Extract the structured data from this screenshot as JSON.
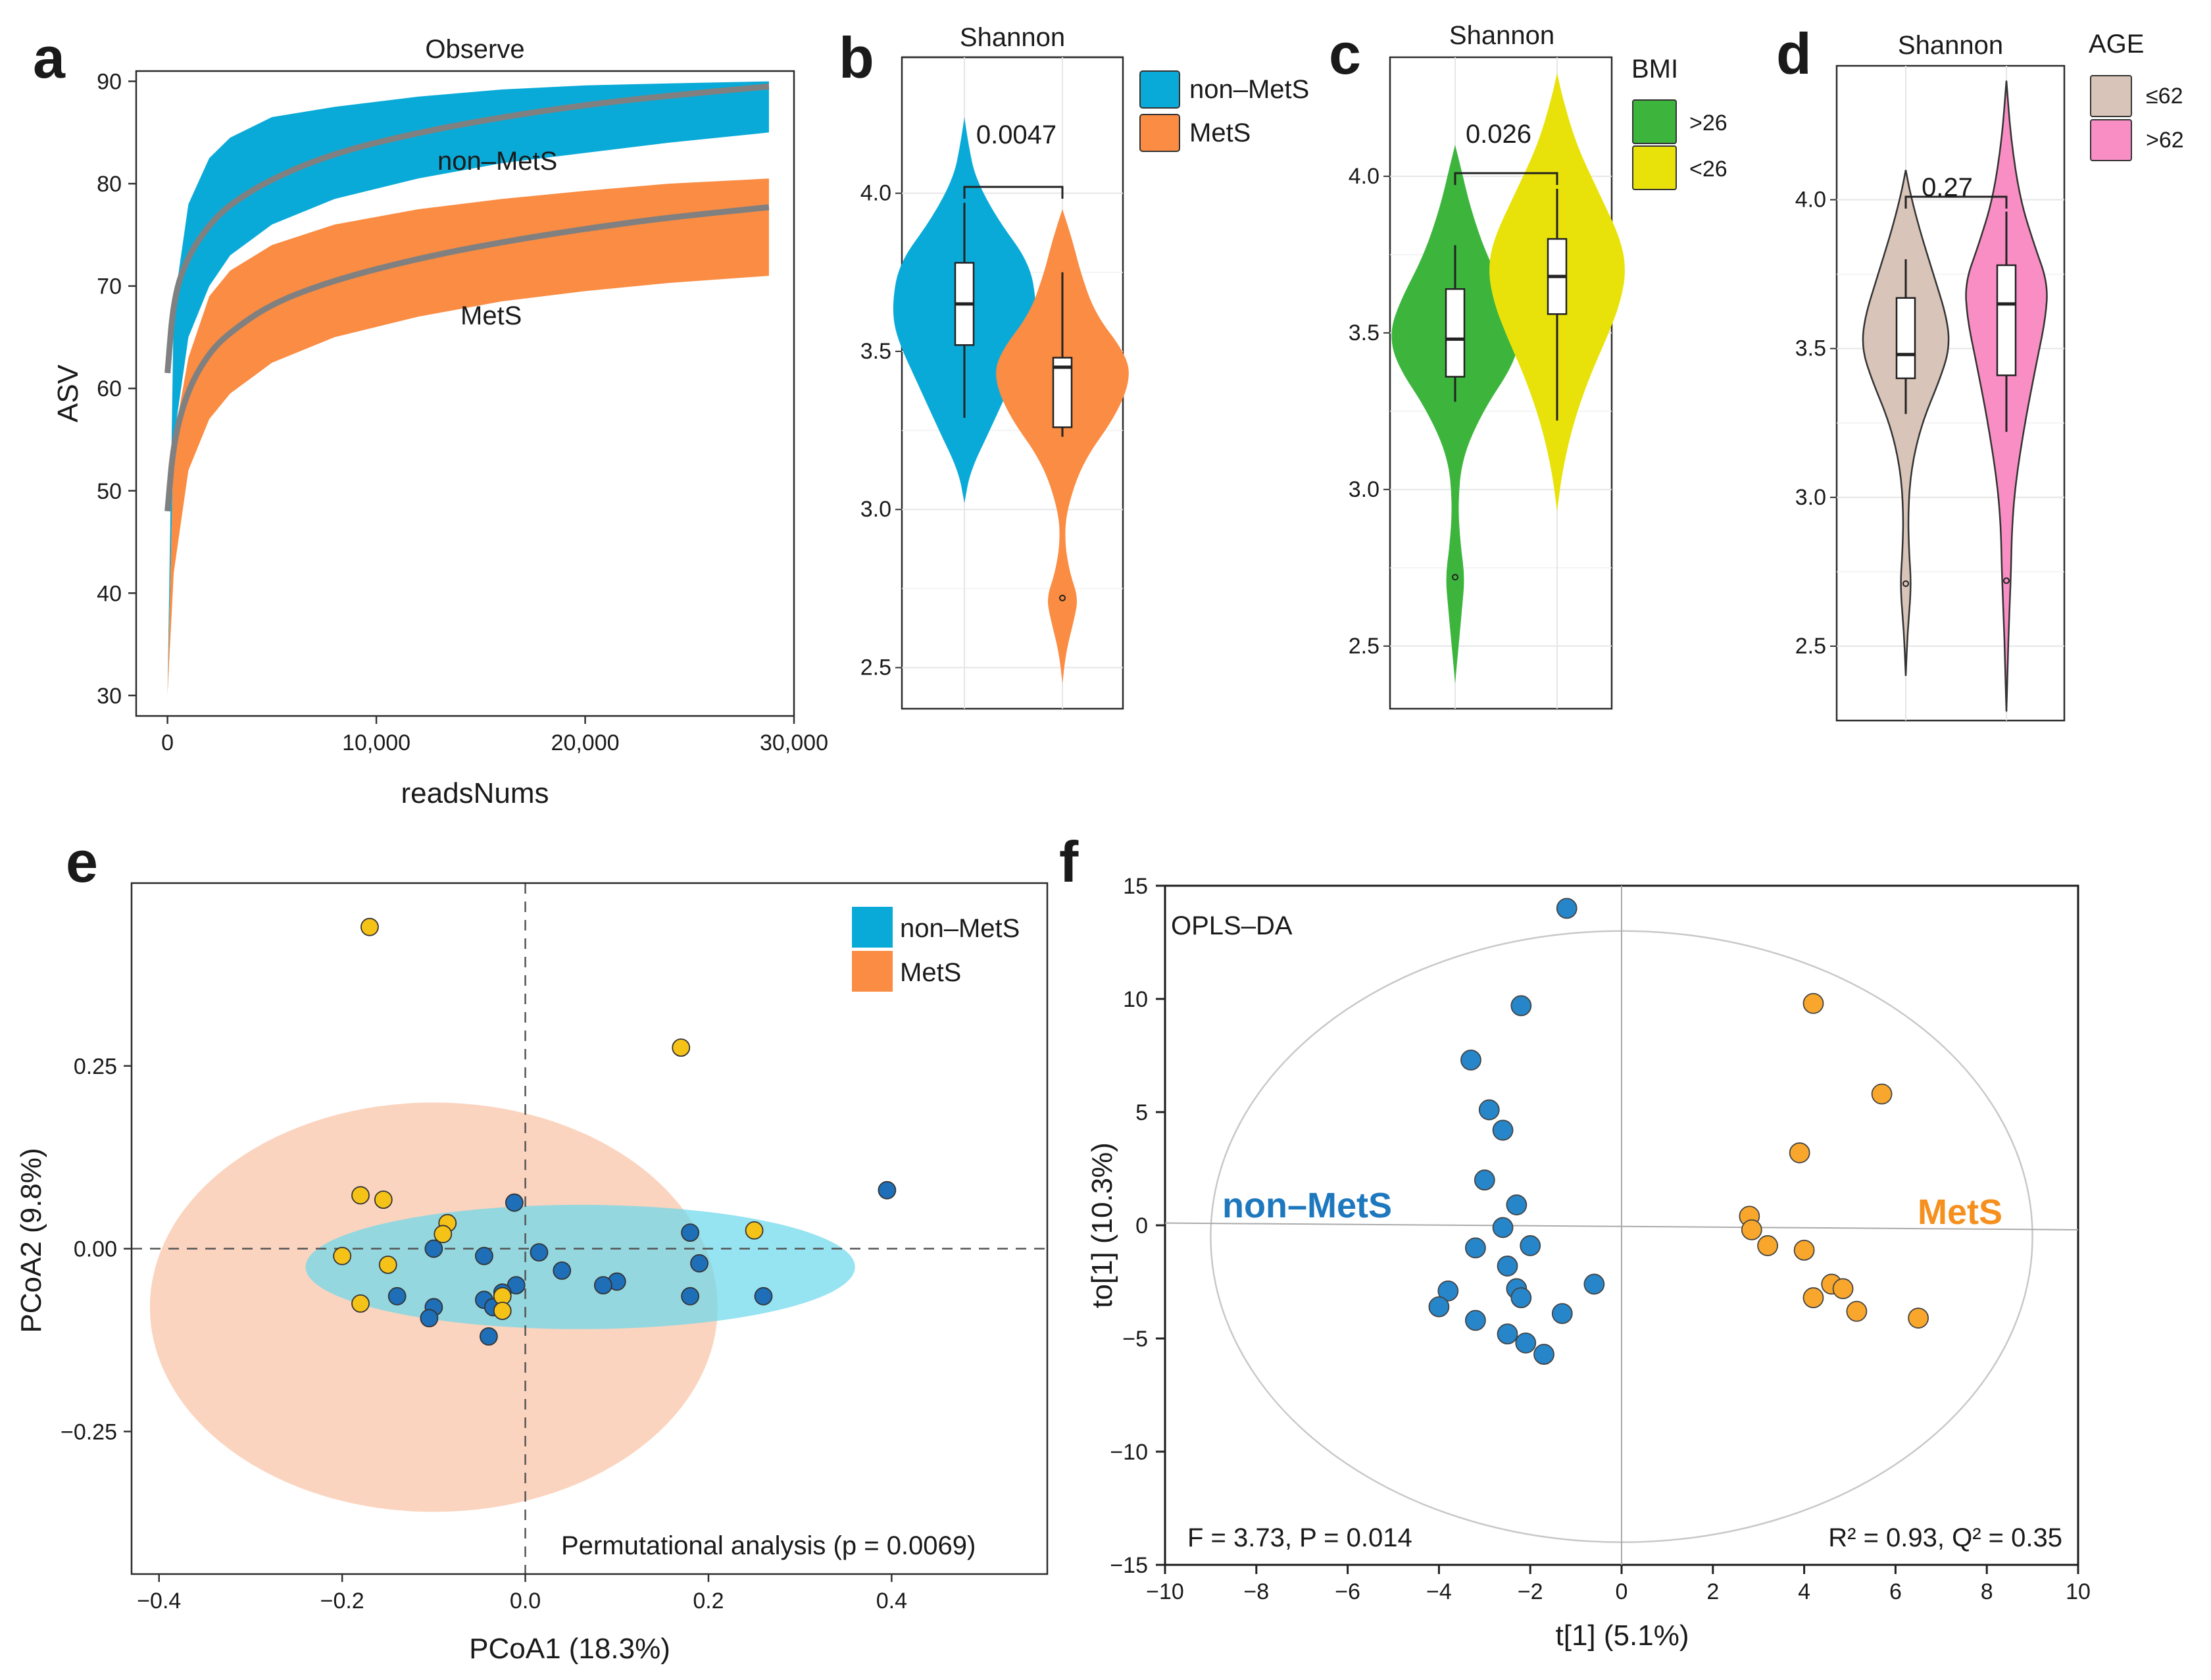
{
  "colors": {
    "nonmets": "#0aaad8",
    "mets": "#fa8c43",
    "bmi_high": "#3db53d",
    "bmi_low": "#e8e20a",
    "age_low": "#d8c4b8",
    "age_high": "#f98ec4",
    "curve": "#808080",
    "pcoa_blue": "#1e6fb8",
    "pcoa_yellow": "#f5c218",
    "ell_orange": "#fbd4bf",
    "ell_cyan": "#6dd8ec",
    "opls_blue": "#2686c9",
    "opls_orange": "#f9a72c",
    "opls_text_blue": "#1e78be",
    "opls_text_orange": "#f5901e"
  },
  "chart_data": [
    {
      "panel": "a",
      "type": "area",
      "title": "Observe",
      "xlabel": "readsNums",
      "ylabel": "ASV",
      "xlim": [
        -1500,
        30000
      ],
      "ylim": [
        28,
        91
      ],
      "xticks": [
        0,
        10000,
        20000,
        30000
      ],
      "xtick_labels": [
        "0",
        "10,000",
        "20,000",
        "30,000"
      ],
      "yticks": [
        30,
        40,
        50,
        60,
        70,
        80,
        90
      ],
      "ytick_labels": [
        "30",
        "40",
        "50",
        "60",
        "70",
        "80",
        "90"
      ],
      "series": [
        {
          "name": "non–MetS",
          "label": "non–MetS",
          "x": [
            0,
            300,
            1000,
            2000,
            3000,
            5000,
            8000,
            12000,
            16000,
            20000,
            24000,
            28800
          ],
          "lower": [
            30,
            55,
            65,
            70,
            73,
            76,
            78.5,
            80.5,
            82,
            83,
            84,
            85
          ],
          "upper": [
            30,
            68,
            78,
            82.5,
            84.5,
            86.5,
            87.5,
            88.5,
            89.2,
            89.6,
            89.8,
            90
          ],
          "mean": [
            61.5,
            69,
            73,
            76,
            78,
            80.5,
            83,
            85,
            86.5,
            87.7,
            88.6,
            89.5
          ]
        },
        {
          "name": "MetS",
          "label": "MetS",
          "x": [
            0,
            300,
            1000,
            2000,
            3000,
            5000,
            8000,
            12000,
            16000,
            20000,
            24000,
            28800
          ],
          "lower": [
            30,
            42,
            52,
            57,
            59.5,
            62.5,
            65,
            67,
            68.5,
            69.5,
            70.3,
            71
          ],
          "upper": [
            30,
            55,
            63,
            69,
            71.5,
            74,
            76,
            77.5,
            78.5,
            79.3,
            80,
            80.5
          ],
          "mean": [
            48,
            55,
            60,
            63.5,
            65.5,
            68.3,
            70.6,
            72.7,
            74.3,
            75.6,
            76.7,
            77.7
          ]
        }
      ]
    },
    {
      "panel": "b",
      "type": "violin",
      "title": "Shannon",
      "ylim": [
        2.37,
        4.43
      ],
      "yticks": [
        2.5,
        3.0,
        3.5,
        4.0
      ],
      "ytick_labels": [
        "2.5",
        "3.0",
        "3.5",
        "4.0"
      ],
      "legend_title": "",
      "legend": [
        "non–MetS",
        "MetS"
      ],
      "pvalue": "0.0047",
      "groups": [
        {
          "name": "non–MetS",
          "color": "nonmets",
          "q1": 3.52,
          "median": 3.65,
          "q3": 3.78,
          "wlo": 3.29,
          "whi": 3.97,
          "outliers": [],
          "violin": [
            [
              3.02,
              0
            ],
            [
              3.12,
              0.08
            ],
            [
              3.25,
              0.35
            ],
            [
              3.4,
              0.65
            ],
            [
              3.55,
              0.95
            ],
            [
              3.65,
              1.0
            ],
            [
              3.78,
              0.9
            ],
            [
              3.92,
              0.45
            ],
            [
              4.05,
              0.15
            ],
            [
              4.15,
              0.06
            ],
            [
              4.24,
              0
            ]
          ]
        },
        {
          "name": "MetS",
          "color": "mets",
          "q1": 3.26,
          "median": 3.45,
          "q3": 3.48,
          "wlo": 3.23,
          "whi": 3.75,
          "outliers": [
            2.72
          ],
          "violin": [
            [
              2.45,
              0
            ],
            [
              2.55,
              0.05
            ],
            [
              2.65,
              0.16
            ],
            [
              2.72,
              0.22
            ],
            [
              2.8,
              0.1
            ],
            [
              2.9,
              0.03
            ],
            [
              3.0,
              0.06
            ],
            [
              3.15,
              0.28
            ],
            [
              3.3,
              0.75
            ],
            [
              3.42,
              0.95
            ],
            [
              3.5,
              0.85
            ],
            [
              3.62,
              0.45
            ],
            [
              3.75,
              0.25
            ],
            [
              3.85,
              0.14
            ],
            [
              3.95,
              0
            ]
          ]
        }
      ]
    },
    {
      "panel": "c",
      "type": "violin",
      "title": "Shannon",
      "ylim": [
        2.3,
        4.38
      ],
      "yticks": [
        2.5,
        3.0,
        3.5,
        4.0
      ],
      "ytick_labels": [
        "2.5",
        "3.0",
        "3.5",
        "4.0"
      ],
      "legend_title": "BMI",
      "legend": [
        ">26",
        "<26"
      ],
      "pvalue": "0.026",
      "groups": [
        {
          "name": ">26",
          "color": "bmi_high",
          "q1": 3.36,
          "median": 3.48,
          "q3": 3.64,
          "wlo": 3.28,
          "whi": 3.78,
          "outliers": [
            2.72
          ],
          "violin": [
            [
              2.38,
              0
            ],
            [
              2.5,
              0.05
            ],
            [
              2.62,
              0.1
            ],
            [
              2.72,
              0.14
            ],
            [
              2.82,
              0.08
            ],
            [
              2.95,
              0.04
            ],
            [
              3.1,
              0.1
            ],
            [
              3.25,
              0.4
            ],
            [
              3.4,
              0.85
            ],
            [
              3.5,
              0.95
            ],
            [
              3.6,
              0.8
            ],
            [
              3.75,
              0.45
            ],
            [
              3.9,
              0.22
            ],
            [
              4.03,
              0.08
            ],
            [
              4.1,
              0
            ]
          ]
        },
        {
          "name": "<26",
          "color": "bmi_low",
          "q1": 3.56,
          "median": 3.68,
          "q3": 3.8,
          "wlo": 3.22,
          "whi": 3.96,
          "outliers": [],
          "violin": [
            [
              2.93,
              0
            ],
            [
              3.05,
              0.07
            ],
            [
              3.2,
              0.22
            ],
            [
              3.35,
              0.45
            ],
            [
              3.5,
              0.75
            ],
            [
              3.6,
              0.92
            ],
            [
              3.7,
              1.0
            ],
            [
              3.8,
              0.92
            ],
            [
              3.95,
              0.6
            ],
            [
              4.1,
              0.28
            ],
            [
              4.25,
              0.08
            ],
            [
              4.33,
              0
            ]
          ]
        }
      ]
    },
    {
      "panel": "d",
      "type": "violin",
      "title": "Shannon",
      "ylim": [
        2.25,
        4.45
      ],
      "yticks": [
        2.5,
        3.0,
        3.5,
        4.0
      ],
      "ytick_labels": [
        "2.5",
        "3.0",
        "3.5",
        "4.0"
      ],
      "legend_title": "AGE",
      "legend": [
        "≤62",
        ">62"
      ],
      "pvalue": "0.27",
      "groups": [
        {
          "name": "≤62",
          "color": "age_low",
          "q1": 3.4,
          "median": 3.48,
          "q3": 3.67,
          "wlo": 3.28,
          "whi": 3.8,
          "outliers": [
            2.71
          ],
          "violin": [
            [
              2.4,
              0
            ],
            [
              2.55,
              0.04
            ],
            [
              2.7,
              0.12
            ],
            [
              2.82,
              0.07
            ],
            [
              2.95,
              0.05
            ],
            [
              3.1,
              0.12
            ],
            [
              3.25,
              0.35
            ],
            [
              3.4,
              0.75
            ],
            [
              3.5,
              0.95
            ],
            [
              3.6,
              0.9
            ],
            [
              3.75,
              0.6
            ],
            [
              3.9,
              0.3
            ],
            [
              4.02,
              0.1
            ],
            [
              4.1,
              0
            ]
          ]
        },
        {
          "name": ">62",
          "color": "age_high",
          "q1": 3.41,
          "median": 3.65,
          "q3": 3.78,
          "wlo": 3.22,
          "whi": 3.96,
          "outliers": [
            2.72
          ],
          "violin": [
            [
              2.28,
              0
            ],
            [
              2.45,
              0.03
            ],
            [
              2.6,
              0.06
            ],
            [
              2.75,
              0.1
            ],
            [
              2.9,
              0.12
            ],
            [
              3.05,
              0.2
            ],
            [
              3.25,
              0.4
            ],
            [
              3.45,
              0.65
            ],
            [
              3.6,
              0.85
            ],
            [
              3.72,
              0.9
            ],
            [
              3.85,
              0.6
            ],
            [
              4.0,
              0.3
            ],
            [
              4.2,
              0.1
            ],
            [
              4.4,
              0
            ]
          ]
        }
      ]
    },
    {
      "panel": "e",
      "type": "scatter",
      "xlabel": "PCoA1 (18.3%)",
      "ylabel": "PCoA2 (9.8%)",
      "xlim": [
        -0.43,
        0.57
      ],
      "ylim": [
        -0.445,
        0.5
      ],
      "xticks": [
        -0.4,
        -0.2,
        0.0,
        0.2,
        0.4
      ],
      "xtick_labels": [
        "−0.4",
        "−0.2",
        "0.0",
        "0.2",
        "0.4"
      ],
      "yticks": [
        -0.25,
        0.0,
        0.25
      ],
      "ytick_labels": [
        "−0.25",
        "0.00",
        "0.25"
      ],
      "legend": [
        "non–MetS",
        "MetS"
      ],
      "annotation": "Permutational analysis (p = 0.0069)",
      "ellipses": [
        {
          "group": "MetS",
          "cx": -0.1,
          "cy": -0.08,
          "rx": 0.31,
          "ry": 0.28
        },
        {
          "group": "non–MetS",
          "cx": 0.06,
          "cy": -0.025,
          "rx": 0.3,
          "ry": 0.085
        }
      ],
      "series": [
        {
          "name": "non–MetS",
          "color": "pcoa_blue",
          "points": [
            [
              0.395,
              0.08
            ],
            [
              -0.012,
              0.063
            ],
            [
              0.18,
              0.022
            ],
            [
              0.015,
              -0.005
            ],
            [
              -0.1,
              0.0
            ],
            [
              -0.045,
              -0.01
            ],
            [
              0.19,
              -0.02
            ],
            [
              0.1,
              -0.045
            ],
            [
              0.085,
              -0.05
            ],
            [
              0.04,
              -0.03
            ],
            [
              -0.01,
              -0.05
            ],
            [
              -0.14,
              -0.065
            ],
            [
              -0.1,
              -0.08
            ],
            [
              -0.045,
              -0.07
            ],
            [
              -0.035,
              -0.08
            ],
            [
              -0.105,
              -0.095
            ],
            [
              -0.04,
              -0.12
            ],
            [
              0.18,
              -0.065
            ],
            [
              0.26,
              -0.065
            ],
            [
              -0.025,
              -0.06
            ]
          ]
        },
        {
          "name": "MetS",
          "color": "pcoa_yellow",
          "points": [
            [
              -0.17,
              0.44
            ],
            [
              0.17,
              0.275
            ],
            [
              -0.18,
              0.073
            ],
            [
              -0.155,
              0.067
            ],
            [
              -0.085,
              0.035
            ],
            [
              -0.09,
              0.02
            ],
            [
              -0.2,
              -0.01
            ],
            [
              -0.15,
              -0.022
            ],
            [
              -0.18,
              -0.075
            ],
            [
              -0.025,
              -0.065
            ],
            [
              -0.025,
              -0.085
            ],
            [
              0.25,
              0.025
            ]
          ]
        }
      ]
    },
    {
      "panel": "f",
      "type": "scatter",
      "title": "OPLS–DA",
      "xlabel": "t[1] (5.1%)",
      "ylabel": "to[1] (10.3%)",
      "xlim": [
        -10,
        10
      ],
      "ylim": [
        -15,
        15
      ],
      "xticks": [
        -10,
        -8,
        -6,
        -4,
        -2,
        0,
        2,
        4,
        6,
        8,
        10
      ],
      "xtick_labels": [
        "−10",
        "−8",
        "−6",
        "−4",
        "−2",
        "0",
        "2",
        "4",
        "6",
        "8",
        "10"
      ],
      "yticks": [
        -15,
        -10,
        -5,
        0,
        5,
        10,
        15
      ],
      "ytick_labels": [
        "−15",
        "−10",
        "−5",
        "0",
        "5",
        "10",
        "15"
      ],
      "label_left": "non–MetS",
      "label_right": "MetS",
      "stat_left": "F = 3.73, P = 0.014",
      "stat_right": "R² = 0.93, Q² = 0.35",
      "ellipse": {
        "cx": 0,
        "cy": -0.5,
        "rx": 9,
        "ry": 13.5
      },
      "series": [
        {
          "name": "non–MetS",
          "color": "opls_blue",
          "points": [
            [
              -1.2,
              14
            ],
            [
              -2.2,
              9.7
            ],
            [
              -3.3,
              7.3
            ],
            [
              -2.9,
              5.1
            ],
            [
              -2.6,
              4.2
            ],
            [
              -3.0,
              2.0
            ],
            [
              -2.3,
              0.9
            ],
            [
              -2.6,
              -0.1
            ],
            [
              -3.2,
              -1.0
            ],
            [
              -2.0,
              -0.9
            ],
            [
              -2.5,
              -1.8
            ],
            [
              -2.3,
              -2.8
            ],
            [
              -2.2,
              -3.2
            ],
            [
              -0.6,
              -2.6
            ],
            [
              -3.8,
              -2.9
            ],
            [
              -4.0,
              -3.6
            ],
            [
              -3.2,
              -4.2
            ],
            [
              -1.3,
              -3.9
            ],
            [
              -2.5,
              -4.8
            ],
            [
              -2.1,
              -5.2
            ],
            [
              -1.7,
              -5.7
            ]
          ]
        },
        {
          "name": "MetS",
          "color": "opls_orange",
          "points": [
            [
              4.2,
              9.8
            ],
            [
              5.7,
              5.8
            ],
            [
              3.9,
              3.2
            ],
            [
              2.8,
              0.4
            ],
            [
              2.85,
              -0.2
            ],
            [
              3.2,
              -0.9
            ],
            [
              4.0,
              -1.1
            ],
            [
              4.6,
              -2.6
            ],
            [
              4.85,
              -2.8
            ],
            [
              4.2,
              -3.2
            ],
            [
              5.15,
              -3.8
            ],
            [
              6.5,
              -4.1
            ]
          ]
        }
      ]
    }
  ]
}
